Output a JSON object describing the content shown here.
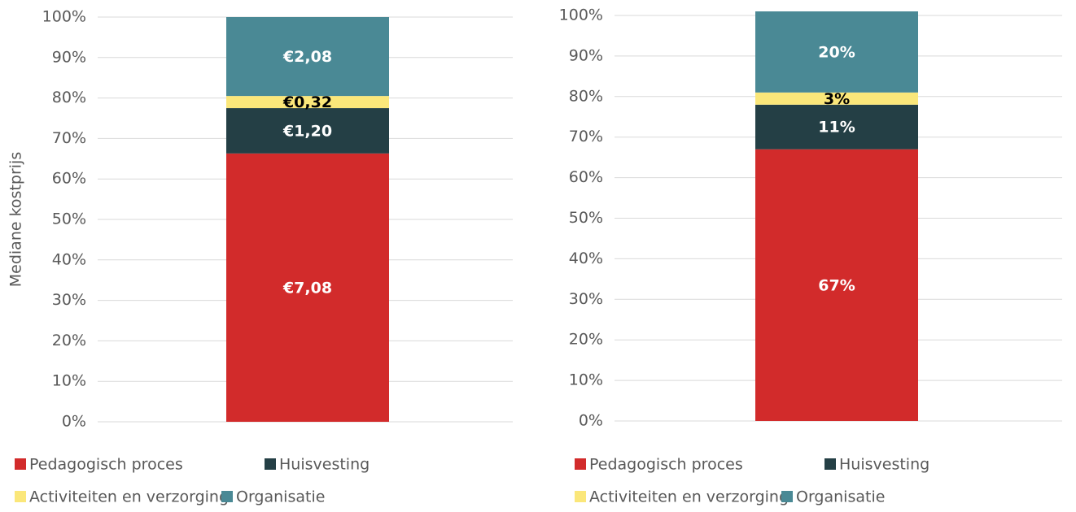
{
  "chart_data": [
    {
      "type": "stacked_bar",
      "ylabel": "Mediane kostprijs",
      "categories": [
        null
      ],
      "ylim": [
        0,
        100
      ],
      "yticks": [
        {
          "value": 0,
          "label": "0%"
        },
        {
          "value": 10,
          "label": "10%"
        },
        {
          "value": 20,
          "label": "20%"
        },
        {
          "value": 30,
          "label": "30%"
        },
        {
          "value": 40,
          "label": "40%"
        },
        {
          "value": 50,
          "label": "50%"
        },
        {
          "value": 60,
          "label": "60%"
        },
        {
          "value": 70,
          "label": "70%"
        },
        {
          "value": 80,
          "label": "80%"
        },
        {
          "value": 90,
          "label": "90%"
        },
        {
          "value": 100,
          "label": "100%"
        }
      ],
      "grid": true,
      "legend": "bottom",
      "series": [
        {
          "name": "Pedagogisch proces",
          "color": "#d22b2b",
          "values": [
            66.3
          ],
          "value_labels": [
            "€7,08"
          ]
        },
        {
          "name": "Huisvesting",
          "color": "#243f45",
          "values": [
            11.2
          ],
          "value_labels": [
            "€1,20"
          ]
        },
        {
          "name": "Activiteiten en verzorging",
          "color": "#fbe77a",
          "values": [
            3.0
          ],
          "value_labels": [
            "€0,32"
          ]
        },
        {
          "name": "Organisatie",
          "color": "#4a8995",
          "values": [
            19.5
          ],
          "value_labels": [
            "€2,08"
          ]
        }
      ]
    },
    {
      "type": "stacked_bar",
      "categories": [
        null
      ],
      "ylim": [
        0,
        100
      ],
      "yticks": [
        {
          "value": 0,
          "label": "0%"
        },
        {
          "value": 10,
          "label": "10%"
        },
        {
          "value": 20,
          "label": "20%"
        },
        {
          "value": 30,
          "label": "30%"
        },
        {
          "value": 40,
          "label": "40%"
        },
        {
          "value": 50,
          "label": "50%"
        },
        {
          "value": 60,
          "label": "60%"
        },
        {
          "value": 70,
          "label": "70%"
        },
        {
          "value": 80,
          "label": "80%"
        },
        {
          "value": 90,
          "label": "90%"
        },
        {
          "value": 100,
          "label": "100%"
        }
      ],
      "grid": true,
      "legend": "bottom",
      "series": [
        {
          "name": "Pedagogisch proces",
          "color": "#d22b2b",
          "values": [
            67
          ],
          "value_labels": [
            "67%"
          ]
        },
        {
          "name": "Huisvesting",
          "color": "#243f45",
          "values": [
            11
          ],
          "value_labels": [
            "11%"
          ]
        },
        {
          "name": "Activiteiten en verzorging",
          "color": "#fbe77a",
          "values": [
            3
          ],
          "value_labels": [
            "3%"
          ]
        },
        {
          "name": "Organisatie",
          "color": "#4a8995",
          "values": [
            20
          ],
          "value_labels": [
            "20%"
          ]
        }
      ]
    }
  ]
}
